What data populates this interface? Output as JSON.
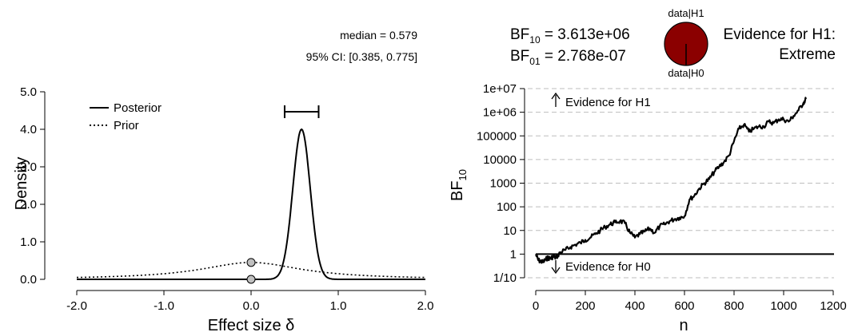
{
  "left_panel": {
    "stats": {
      "median": "median = 0.579",
      "ci": "95% CI: [0.385, 0.775]"
    },
    "legend": {
      "posterior": "Posterior",
      "prior": "Prior"
    }
  },
  "right_panel": {
    "bf10_label": "BF",
    "bf10_sub": "10",
    "bf10_value": " = 3.613e+06",
    "bf01_label": "BF",
    "bf01_sub": "01",
    "bf01_value": " = 2.768e-07",
    "pie_top_label": "data|H1",
    "pie_bottom_label": "data|H0",
    "evidence_line1": "Evidence for H1:",
    "evidence_line2": "Extreme",
    "annot_h1": "Evidence for H1",
    "annot_h0": "Evidence for H0"
  },
  "chart_data": [
    {
      "type": "line",
      "xlabel": "Effect size δ",
      "ylabel": "Density",
      "xlim": [
        -2.0,
        2.0
      ],
      "ylim": [
        0.0,
        5.0
      ],
      "xticks": [
        "-2.0",
        "-1.0",
        "0.0",
        "1.0",
        "2.0"
      ],
      "yticks": [
        "0.0",
        "1.0",
        "2.0",
        "3.0",
        "4.0",
        "5.0"
      ],
      "series": [
        {
          "name": "Posterior",
          "style": "solid",
          "distribution": "normal",
          "mean": 0.579,
          "sd": 0.1,
          "peak": 4.0
        },
        {
          "name": "Prior",
          "style": "dotted",
          "distribution": "cauchy",
          "location": 0.0,
          "scale": 0.707
        }
      ],
      "points": [
        {
          "x": 0.0,
          "y": 0.45,
          "label": "prior at 0"
        },
        {
          "x": 0.0,
          "y": 0.0,
          "label": "posterior at 0"
        }
      ],
      "credible_interval": [
        0.385,
        0.775
      ],
      "median": 0.579,
      "legend_position": "top-left"
    },
    {
      "type": "line",
      "xlabel": "n",
      "ylabel": "BF10",
      "ylabel_main": "BF",
      "ylabel_sub": "10",
      "xlim": [
        0,
        1200
      ],
      "ylim": [
        0.1,
        10000000
      ],
      "log_y": true,
      "xticks": [
        "0",
        "200",
        "400",
        "600",
        "800",
        "1000",
        "1200"
      ],
      "yticks": [
        "1/10",
        "1",
        "10",
        "100",
        "1000",
        "10000",
        "100000",
        "1e+06",
        "1e+07"
      ],
      "grid": "horizontal dashed",
      "reference_line_y": 1,
      "series": [
        {
          "x": [
            0,
            10,
            20,
            30,
            40,
            50,
            60,
            70,
            80,
            90,
            100,
            120,
            140,
            160,
            180,
            200,
            220,
            240,
            260,
            280,
            300,
            320,
            340,
            360,
            380,
            400,
            420,
            440,
            460,
            480,
            500,
            520,
            540,
            560,
            580,
            600,
            620,
            640,
            660,
            680,
            700,
            720,
            740,
            760,
            780,
            800,
            820,
            840,
            860,
            880,
            900,
            920,
            940,
            960,
            980,
            1000,
            1020,
            1040,
            1060,
            1080,
            1090
          ],
          "y": [
            1,
            0.55,
            0.5,
            0.45,
            0.6,
            0.7,
            0.65,
            0.8,
            0.7,
            0.9,
            1.2,
            1.5,
            2,
            2.5,
            3,
            4,
            5,
            7,
            10,
            14,
            18,
            22,
            25,
            20,
            8,
            5,
            7,
            9,
            12,
            8,
            15,
            18,
            25,
            30,
            35,
            40,
            200,
            300,
            600,
            1000,
            1500,
            3000,
            5000,
            8000,
            15000,
            60000,
            200000,
            300000,
            150000,
            200000,
            250000,
            250000,
            400000,
            350000,
            500000,
            500000,
            400000,
            700000,
            1200000,
            2500000,
            3613000
          ]
        }
      ]
    }
  ]
}
